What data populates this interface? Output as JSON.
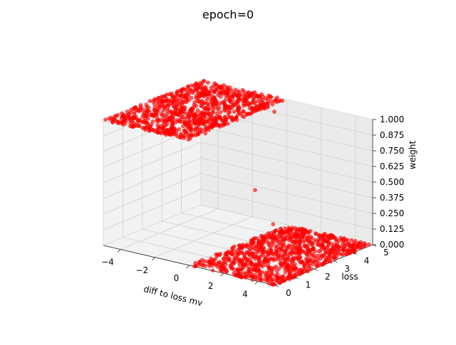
{
  "chart_data": {
    "type": "scatter3d",
    "title": "epoch=0",
    "xlabel": "diff to loss mv",
    "ylabel": "loss",
    "zlabel": "weight",
    "xlim": [
      -5,
      5
    ],
    "ylim": [
      0,
      5
    ],
    "zlim": [
      0,
      1
    ],
    "x_ticks": [
      "−4",
      "−2",
      "0",
      "2",
      "4"
    ],
    "y_ticks": [
      "0",
      "1",
      "2",
      "3",
      "4",
      "5"
    ],
    "z_ticks": [
      "0.000",
      "0.125",
      "0.250",
      "0.375",
      "0.500",
      "0.625",
      "0.750",
      "0.875",
      "1.000"
    ],
    "grid": true,
    "marker_color": "#ff0000",
    "series": [
      {
        "description": "step-shaped cloud: weight 1 where diff to loss mv < 0, weight 0 where diff to loss mv > 0",
        "regions": [
          {
            "x_range": [
              -5,
              0
            ],
            "y_range": [
              0,
              5
            ],
            "z": 1
          },
          {
            "x_range": [
              0,
              5
            ],
            "y_range": [
              0,
              5
            ],
            "z": 0
          }
        ],
        "outliers": [
          {
            "x": 0.0,
            "y": 4.3,
            "z": 0.05
          },
          {
            "x": 0.2,
            "y": 3.2,
            "z": 0.4
          },
          {
            "x": -0.5,
            "y": 4.8,
            "z": 0.9
          }
        ]
      }
    ]
  }
}
